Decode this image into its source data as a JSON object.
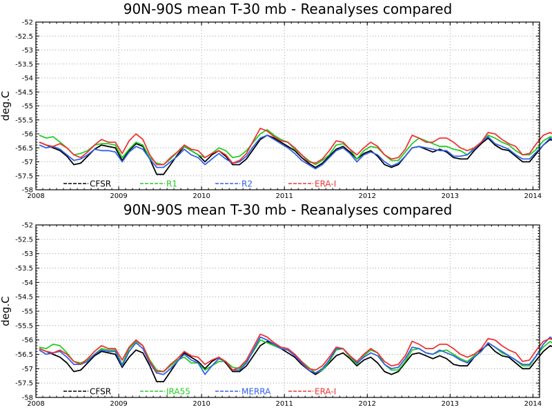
{
  "chart_data": [
    {
      "type": "line",
      "title": "90N-90S mean T-30 mb - Reanalyses compared",
      "ylabel": "deg.C",
      "ylim": [
        -58,
        -52
      ],
      "yticks": [
        -52,
        -52.5,
        -53,
        -53.5,
        -54,
        -54.5,
        -55,
        -55.5,
        -56,
        -56.5,
        -57,
        -57.5,
        -58
      ],
      "xlim": [
        2008,
        2014.08
      ],
      "xticks": [
        2008,
        2009,
        2010,
        2011,
        2012,
        2013,
        2014
      ],
      "grid": true,
      "legend_position": "bottom-left",
      "series": [
        {
          "name": "CFSR",
          "color": "#000000",
          "values": [
            -56.3,
            -56.4,
            -56.5,
            -56.6,
            -56.8,
            -57.1,
            -57.05,
            -56.8,
            -56.55,
            -56.4,
            -56.45,
            -56.5,
            -56.95,
            -56.6,
            -56.35,
            -56.45,
            -56.9,
            -57.45,
            -57.45,
            -57.1,
            -56.75,
            -56.45,
            -56.6,
            -56.75,
            -57.0,
            -56.75,
            -56.6,
            -56.8,
            -57.1,
            -57.1,
            -56.9,
            -56.55,
            -56.2,
            -56.05,
            -56.15,
            -56.3,
            -56.45,
            -56.6,
            -56.85,
            -57.05,
            -57.2,
            -57.05,
            -56.8,
            -56.55,
            -56.45,
            -56.65,
            -56.9,
            -56.7,
            -56.6,
            -56.8,
            -57.1,
            -57.2,
            -57.1,
            -56.8,
            -56.5,
            -56.45,
            -56.55,
            -56.65,
            -56.55,
            -56.65,
            -56.85,
            -56.9,
            -56.9,
            -56.6,
            -56.35,
            -56.15,
            -56.4,
            -56.55,
            -56.6,
            -56.8,
            -57.0,
            -57.0,
            -56.7,
            -56.4,
            -56.2,
            -56.3
          ]
        },
        {
          "name": "R1",
          "color": "#22cc22",
          "values": [
            -56.05,
            -56.15,
            -56.1,
            -56.3,
            -56.5,
            -56.75,
            -56.7,
            -56.6,
            -56.4,
            -56.35,
            -56.35,
            -56.4,
            -56.85,
            -56.55,
            -56.3,
            -56.4,
            -56.85,
            -57.05,
            -57.1,
            -56.9,
            -56.65,
            -56.45,
            -56.6,
            -56.75,
            -56.85,
            -56.7,
            -56.5,
            -56.6,
            -56.85,
            -56.8,
            -56.6,
            -56.3,
            -56.0,
            -55.85,
            -56.05,
            -56.2,
            -56.3,
            -56.55,
            -56.75,
            -56.95,
            -57.1,
            -56.95,
            -56.75,
            -56.4,
            -56.35,
            -56.55,
            -56.9,
            -56.6,
            -56.45,
            -56.5,
            -56.75,
            -56.95,
            -56.95,
            -56.65,
            -56.35,
            -56.15,
            -56.25,
            -56.35,
            -56.45,
            -56.45,
            -56.55,
            -56.6,
            -56.75,
            -56.5,
            -56.3,
            -56.05,
            -56.15,
            -56.3,
            -56.4,
            -56.6,
            -56.75,
            -56.75,
            -56.55,
            -56.25,
            -56.1,
            -56.2
          ]
        },
        {
          "name": "R2",
          "color": "#3060e8",
          "values": [
            -56.4,
            -56.5,
            -56.45,
            -56.55,
            -56.75,
            -56.95,
            -56.9,
            -56.75,
            -56.55,
            -56.6,
            -56.6,
            -56.65,
            -57.0,
            -56.65,
            -56.45,
            -56.55,
            -56.9,
            -57.2,
            -57.2,
            -57.0,
            -56.8,
            -56.55,
            -56.75,
            -56.85,
            -57.1,
            -56.9,
            -56.7,
            -56.9,
            -57.05,
            -57.0,
            -56.8,
            -56.45,
            -56.15,
            -56.05,
            -56.2,
            -56.35,
            -56.5,
            -56.7,
            -56.95,
            -57.1,
            -57.25,
            -57.1,
            -56.85,
            -56.6,
            -56.5,
            -56.7,
            -57.0,
            -56.75,
            -56.65,
            -56.75,
            -57.0,
            -57.15,
            -57.05,
            -56.8,
            -56.5,
            -56.45,
            -56.5,
            -56.55,
            -56.6,
            -56.6,
            -56.8,
            -56.8,
            -56.75,
            -56.55,
            -56.3,
            -56.1,
            -56.35,
            -56.45,
            -56.55,
            -56.75,
            -56.9,
            -56.9,
            -56.65,
            -56.4,
            -56.15,
            -56.3
          ]
        },
        {
          "name": "ERA-I",
          "color": "#ee3333",
          "values": [
            -56.3,
            -56.4,
            -56.45,
            -56.35,
            -56.5,
            -56.75,
            -56.85,
            -56.65,
            -56.4,
            -56.2,
            -56.3,
            -56.3,
            -56.7,
            -56.25,
            -56.0,
            -56.2,
            -56.75,
            -57.1,
            -57.1,
            -56.85,
            -56.65,
            -56.4,
            -56.55,
            -56.6,
            -56.85,
            -56.7,
            -56.6,
            -56.75,
            -57.05,
            -56.95,
            -56.7,
            -56.25,
            -55.8,
            -55.9,
            -56.1,
            -56.25,
            -56.3,
            -56.5,
            -56.75,
            -57.0,
            -57.05,
            -56.9,
            -56.6,
            -56.25,
            -56.3,
            -56.55,
            -56.75,
            -56.5,
            -56.3,
            -56.45,
            -56.75,
            -56.9,
            -56.85,
            -56.55,
            -56.05,
            -56.15,
            -56.3,
            -56.3,
            -56.15,
            -56.15,
            -56.3,
            -56.5,
            -56.6,
            -56.5,
            -56.3,
            -55.95,
            -56.0,
            -56.2,
            -56.35,
            -56.45,
            -56.75,
            -56.7,
            -56.35,
            -56.05,
            -55.95,
            -56.1
          ]
        }
      ]
    },
    {
      "type": "line",
      "title": "90N-90S mean T-30 mb - Reanalyses compared",
      "ylabel": "deg.C",
      "ylim": [
        -58,
        -52
      ],
      "yticks": [
        -52,
        -52.5,
        -53,
        -53.5,
        -54,
        -54.5,
        -55,
        -55.5,
        -56,
        -56.5,
        -57,
        -57.5,
        -58
      ],
      "xlim": [
        2008,
        2014.08
      ],
      "xticks": [
        2008,
        2009,
        2010,
        2011,
        2012,
        2013,
        2014
      ],
      "grid": true,
      "legend_position": "bottom-left",
      "series": [
        {
          "name": "CFSR",
          "color": "#000000",
          "values": [
            -56.3,
            -56.4,
            -56.5,
            -56.6,
            -56.8,
            -57.1,
            -57.05,
            -56.8,
            -56.55,
            -56.4,
            -56.45,
            -56.5,
            -56.95,
            -56.6,
            -56.35,
            -56.45,
            -56.9,
            -57.45,
            -57.45,
            -57.1,
            -56.75,
            -56.45,
            -56.6,
            -56.75,
            -57.0,
            -56.75,
            -56.6,
            -56.8,
            -57.1,
            -57.1,
            -56.9,
            -56.55,
            -56.2,
            -56.05,
            -56.15,
            -56.3,
            -56.45,
            -56.6,
            -56.85,
            -57.05,
            -57.2,
            -57.05,
            -56.8,
            -56.55,
            -56.45,
            -56.65,
            -56.9,
            -56.7,
            -56.6,
            -56.8,
            -57.1,
            -57.2,
            -57.1,
            -56.8,
            -56.5,
            -56.45,
            -56.55,
            -56.65,
            -56.55,
            -56.65,
            -56.85,
            -56.9,
            -56.9,
            -56.6,
            -56.35,
            -56.15,
            -56.4,
            -56.55,
            -56.6,
            -56.8,
            -57.0,
            -57.0,
            -56.7,
            -56.4,
            -56.2,
            -56.3
          ]
        },
        {
          "name": "JRA55",
          "color": "#22cc22",
          "values": [
            -56.25,
            -56.3,
            -56.15,
            -56.2,
            -56.45,
            -56.75,
            -56.8,
            -56.7,
            -56.5,
            -56.3,
            -56.35,
            -56.35,
            -56.85,
            -56.3,
            -56.05,
            -56.2,
            -56.7,
            -57.05,
            -57.1,
            -56.9,
            -56.7,
            -56.6,
            -56.8,
            -56.8,
            -57.05,
            -56.9,
            -56.75,
            -56.75,
            -56.95,
            -57.0,
            -56.75,
            -56.4,
            -56.0,
            -56.1,
            -56.2,
            -56.3,
            -56.35,
            -56.5,
            -56.75,
            -56.95,
            -57.15,
            -57.05,
            -56.75,
            -56.35,
            -56.3,
            -56.6,
            -56.85,
            -56.55,
            -56.35,
            -56.45,
            -56.85,
            -57.05,
            -57.05,
            -56.75,
            -56.35,
            -56.3,
            -56.45,
            -56.5,
            -56.4,
            -56.35,
            -56.5,
            -56.65,
            -56.75,
            -56.55,
            -56.4,
            -56.1,
            -56.25,
            -56.45,
            -56.55,
            -56.7,
            -56.9,
            -56.9,
            -56.55,
            -56.25,
            -56.05,
            -56.25
          ]
        },
        {
          "name": "MERRA",
          "color": "#3060e8",
          "values": [
            -56.35,
            -56.5,
            -56.45,
            -56.4,
            -56.6,
            -56.85,
            -56.85,
            -56.75,
            -56.5,
            -56.35,
            -56.4,
            -56.4,
            -56.9,
            -56.4,
            -56.1,
            -56.3,
            -56.8,
            -57.15,
            -57.2,
            -57.0,
            -56.75,
            -56.5,
            -56.7,
            -56.8,
            -57.2,
            -56.9,
            -56.65,
            -56.75,
            -57.05,
            -57.05,
            -56.8,
            -56.35,
            -55.9,
            -56.0,
            -56.15,
            -56.3,
            -56.35,
            -56.55,
            -56.8,
            -57.05,
            -57.15,
            -57.0,
            -56.7,
            -56.3,
            -56.3,
            -56.55,
            -56.8,
            -56.6,
            -56.45,
            -56.55,
            -56.85,
            -57.0,
            -56.95,
            -56.65,
            -56.25,
            -56.3,
            -56.45,
            -56.5,
            -56.35,
            -56.45,
            -56.55,
            -56.7,
            -56.8,
            -56.6,
            -56.4,
            -56.1,
            -56.25,
            -56.4,
            -56.55,
            -56.7,
            -56.85,
            -56.85,
            -56.55,
            -56.15,
            -55.9,
            -56.1
          ]
        },
        {
          "name": "ERA-I",
          "color": "#ee3333",
          "values": [
            -56.3,
            -56.4,
            -56.45,
            -56.35,
            -56.5,
            -56.75,
            -56.85,
            -56.65,
            -56.4,
            -56.2,
            -56.3,
            -56.3,
            -56.7,
            -56.25,
            -56.0,
            -56.2,
            -56.75,
            -57.1,
            -57.1,
            -56.85,
            -56.65,
            -56.4,
            -56.55,
            -56.6,
            -56.85,
            -56.7,
            -56.6,
            -56.75,
            -57.05,
            -56.95,
            -56.7,
            -56.25,
            -55.8,
            -55.9,
            -56.1,
            -56.25,
            -56.3,
            -56.5,
            -56.75,
            -57.0,
            -57.05,
            -56.9,
            -56.6,
            -56.25,
            -56.3,
            -56.55,
            -56.75,
            -56.5,
            -56.3,
            -56.45,
            -56.75,
            -56.9,
            -56.85,
            -56.55,
            -56.05,
            -56.15,
            -56.3,
            -56.3,
            -56.15,
            -56.15,
            -56.3,
            -56.5,
            -56.6,
            -56.5,
            -56.3,
            -55.95,
            -56.0,
            -56.2,
            -56.35,
            -56.45,
            -56.75,
            -56.7,
            -56.35,
            -56.05,
            -55.95,
            -56.1
          ]
        }
      ]
    }
  ]
}
